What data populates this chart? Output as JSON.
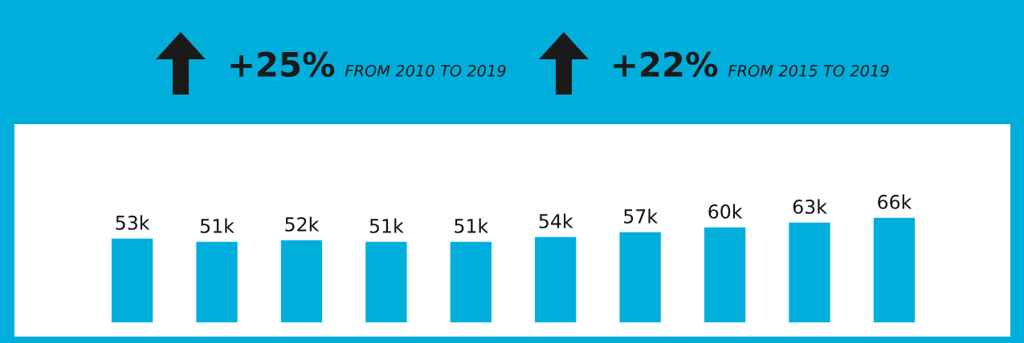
{
  "chart_data": {
    "type": "bar",
    "annotations": [
      "+25% FROM 2010 TO 2019",
      "+22% FROM 2015 TO 2019"
    ],
    "categories": [
      null,
      null,
      null,
      null,
      null,
      null,
      null,
      null,
      null,
      null
    ],
    "values": [
      53000,
      51000,
      52000,
      51000,
      51000,
      54000,
      57000,
      60000,
      63000,
      66000
    ],
    "value_labels": [
      "53k",
      "51k",
      "52k",
      "51k",
      "51k",
      "54k",
      "57k",
      "60k",
      "63k",
      "66k"
    ],
    "color": "#00aedb",
    "grid": false,
    "legend": false
  }
}
